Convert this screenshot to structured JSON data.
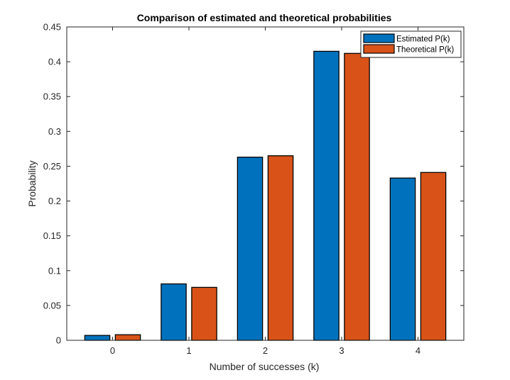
{
  "chart_data": {
    "type": "bar",
    "title": "Comparison of estimated and theoretical probabilities",
    "xlabel": "Number of successes (k)",
    "ylabel": "Probability",
    "categories": [
      "0",
      "1",
      "2",
      "3",
      "4"
    ],
    "series": [
      {
        "name": "Estimated P(k)",
        "color": "#0072BD",
        "values": [
          0.007,
          0.081,
          0.263,
          0.415,
          0.233
        ]
      },
      {
        "name": "Theoretical P(k)",
        "color": "#D95319",
        "values": [
          0.008,
          0.076,
          0.265,
          0.412,
          0.241
        ]
      }
    ],
    "ylim": [
      0,
      0.45
    ],
    "yticks": [
      0,
      0.05,
      0.1,
      0.15,
      0.2,
      0.25,
      0.3,
      0.35,
      0.4,
      0.45
    ],
    "ytick_labels": [
      "0",
      "0.05",
      "0.1",
      "0.15",
      "0.2",
      "0.25",
      "0.3",
      "0.35",
      "0.4",
      "0.45"
    ],
    "grid": false,
    "legend_position": "top-right"
  }
}
